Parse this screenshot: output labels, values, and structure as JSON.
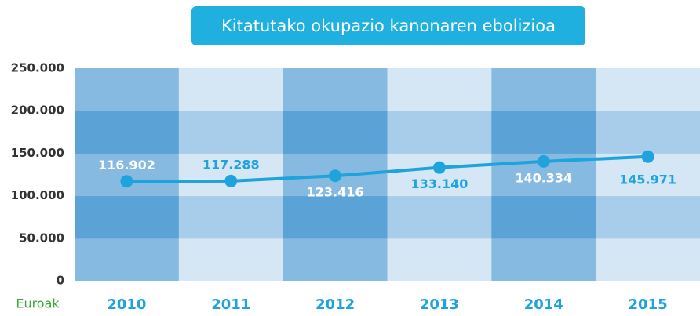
{
  "chart_data": {
    "type": "line",
    "title": "Kitatutako okupazio kanonaren ebolizioa",
    "unit_label": "Euroak",
    "categories": [
      "2010",
      "2011",
      "2012",
      "2013",
      "2014",
      "2015"
    ],
    "series": [
      {
        "color": "#1fa3dc",
        "values": [
          116902,
          117288,
          123416,
          133140,
          140334,
          145971
        ],
        "value_labels": [
          "116.902",
          "117.288",
          "123.416",
          "133.140",
          "140.334",
          "145.971"
        ]
      }
    ],
    "ylim": [
      0,
      250000
    ],
    "yticks": [
      0,
      {
        "value": 50000,
        "label": "50.000"
      },
      {
        "value": 100000,
        "label": "100.000"
      },
      {
        "value": 150000,
        "label": "150.000"
      },
      {
        "value": 200000,
        "label": "200.000"
      },
      {
        "value": 250000,
        "label": "250.000"
      }
    ]
  }
}
